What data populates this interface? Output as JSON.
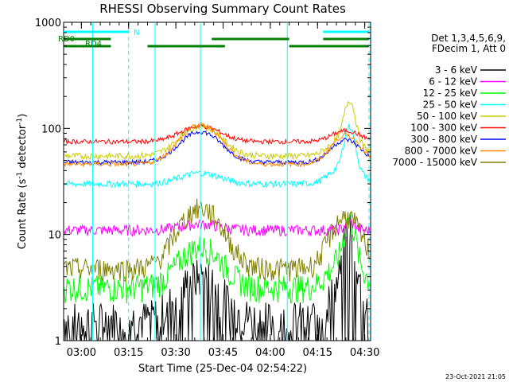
{
  "chart_data": {
    "type": "line",
    "title": "RHESSI Observing Summary Count Rates",
    "xlabel": "Start Time (25-Dec-04 02:54:22)",
    "ylabel": "Count Rate (s",
    "ylabel_sup": "-1",
    "ylabel_mid": " detector",
    "ylabel_end": ")",
    "yscale": "log",
    "ylim": [
      1,
      1000
    ],
    "xlim": [
      2.906,
      4.531
    ],
    "y_ticks": [
      {
        "v": 1,
        "label": "1"
      },
      {
        "v": 10,
        "label": "10"
      },
      {
        "v": 100,
        "label": "100"
      },
      {
        "v": 1000,
        "label": "1000"
      }
    ],
    "x_ticks": [
      {
        "v": 3.0,
        "label": "03:00"
      },
      {
        "v": 3.25,
        "label": "03:15"
      },
      {
        "v": 3.5,
        "label": "03:30"
      },
      {
        "v": 3.75,
        "label": "03:45"
      },
      {
        "v": 4.0,
        "label": "04:00"
      },
      {
        "v": 4.25,
        "label": "04:15"
      },
      {
        "v": 4.5,
        "label": "04:30"
      }
    ],
    "legend_header": [
      "Det 1,3,4,5,6,9,",
      "FDecim 1, Att 0"
    ],
    "legend_position": "right",
    "series": [
      {
        "name": "3 - 6 keV",
        "color": "#000000"
      },
      {
        "name": "6 - 12 keV",
        "color": "#ff00ff"
      },
      {
        "name": "12 - 25 keV",
        "color": "#00ff00"
      },
      {
        "name": "25 - 50 keV",
        "color": "#00ffff"
      },
      {
        "name": "50 - 100 keV",
        "color": "#cccc00"
      },
      {
        "name": "100 - 300 keV",
        "color": "#ff0000"
      },
      {
        "name": "300 - 800 keV",
        "color": "#0000ff"
      },
      {
        "name": "800 - 7000 keV",
        "color": "#ff8800"
      },
      {
        "name": "7000 - 15000 keV",
        "color": "#808000"
      }
    ],
    "flags": [
      {
        "label": "N",
        "color": "#00ffff",
        "segments": [
          [
            2.906,
            3.25
          ],
          [
            4.28,
            4.52
          ]
        ]
      },
      {
        "label": "RD0",
        "color": "#008000",
        "segments": [
          [
            2.906,
            3.156
          ],
          [
            3.69,
            4.1
          ],
          [
            4.28,
            4.52
          ]
        ]
      },
      {
        "label": "RD4",
        "color": "#008000",
        "segments": [
          [
            2.906,
            3.156
          ],
          [
            3.35,
            3.76
          ],
          [
            4.1,
            4.52
          ]
        ]
      }
    ],
    "gaps": [
      3.06,
      3.39,
      3.63,
      4.09
    ],
    "dashed_lines": [
      3.25,
      4.53
    ]
  },
  "footer": {
    "timestamp": "23-Oct-2021 21:05"
  }
}
